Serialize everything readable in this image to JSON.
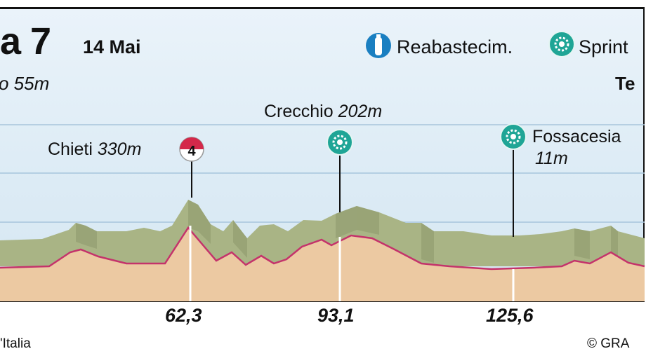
{
  "header": {
    "stage": "a 7",
    "date": "14 Mai"
  },
  "legend": {
    "items": [
      {
        "label": "Reabastecim.",
        "icon": "bottle-icon",
        "color": "#1a7fc1"
      },
      {
        "label": "Sprint",
        "icon": "sprint-gear-icon",
        "color": "#1fa596"
      }
    ]
  },
  "start": {
    "text": "o 55m"
  },
  "finish": {
    "text": "Te"
  },
  "points": [
    {
      "name": "Chieti",
      "elev": "330m",
      "km": "62,3",
      "icon": "climb-cat4-icon",
      "category": "4"
    },
    {
      "name": "Crecchio",
      "elev": "202m",
      "km": "93,1",
      "icon": "sprint-gear-icon"
    },
    {
      "name": "Fossacesia",
      "elev": "11m",
      "km": "125,6",
      "icon": "sprint-gear-icon"
    }
  ],
  "footer": {
    "source": "'Italia",
    "copyright": "© GRA"
  },
  "colors": {
    "profile_top": "#a9b485",
    "profile_side": "#8a9468",
    "ground": "#ecc9a2",
    "line": "#c4336b",
    "sprint": "#1fa596",
    "climb": "#d4284a"
  }
}
